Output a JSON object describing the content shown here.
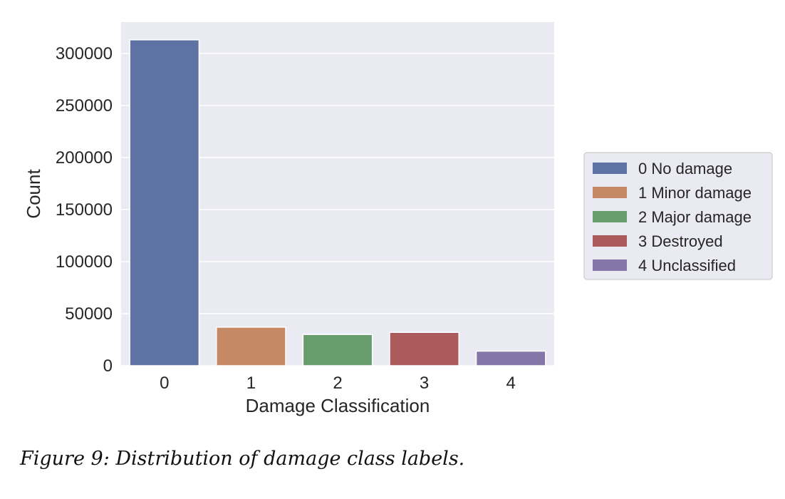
{
  "chart_data": {
    "type": "bar",
    "categories": [
      "0",
      "1",
      "2",
      "3",
      "4"
    ],
    "values": [
      313000,
      37000,
      30000,
      32000,
      14000
    ],
    "xlabel": "Damage Classification",
    "ylabel": "Count",
    "ylim": [
      0,
      330000
    ],
    "yticks": [
      0,
      50000,
      100000,
      150000,
      200000,
      250000,
      300000
    ],
    "grid": true,
    "legend_position": "right",
    "legend": [
      {
        "label": "0 No damage",
        "color": "#5e72a3"
      },
      {
        "label": "1 Minor damage",
        "color": "#c58a65"
      },
      {
        "label": "2 Major damage",
        "color": "#679d6c"
      },
      {
        "label": "3 Destroyed",
        "color": "#ab5b5c"
      },
      {
        "label": "4 Unclassified",
        "color": "#8476a7"
      }
    ],
    "colors": [
      "#5e72a3",
      "#c58a65",
      "#679d6c",
      "#ab5b5c",
      "#8476a7"
    ],
    "background": "#eaeaf2",
    "gridline_color": "#ffffff"
  },
  "caption": "Figure 9: Distribution of damage class labels."
}
